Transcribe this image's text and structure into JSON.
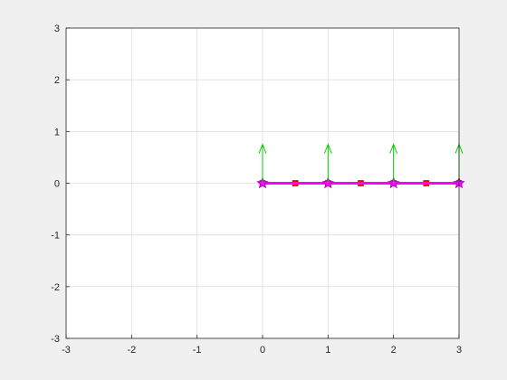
{
  "chart_data": {
    "type": "line",
    "title": "",
    "xlabel": "",
    "ylabel": "",
    "xlim": [
      -3,
      3
    ],
    "ylim": [
      -3,
      3
    ],
    "xticks": [
      "-3",
      "-2",
      "-1",
      "0",
      "1",
      "2",
      "3"
    ],
    "yticks": [
      "3",
      "2",
      "1",
      "0",
      "-1",
      "-2",
      "-3"
    ],
    "grid": true,
    "series": [
      {
        "kind": "line",
        "color": "#ff0000",
        "marker": "square",
        "x": [
          0,
          0.5,
          1,
          1.5,
          2,
          2.5,
          3
        ],
        "y": [
          0,
          0,
          0,
          0,
          0,
          0,
          0
        ]
      },
      {
        "kind": "line",
        "color": "#ff00ff",
        "marker": "star",
        "x": [
          0,
          1,
          2,
          3
        ],
        "y": [
          0,
          0,
          0,
          0
        ]
      },
      {
        "kind": "arrows",
        "color": "#00cc00",
        "x": [
          0,
          1,
          2,
          3
        ],
        "y": [
          0,
          0,
          0,
          0
        ],
        "dx": [
          0,
          0,
          0,
          0
        ],
        "dy": [
          0.75,
          0.75,
          0.75,
          0.75
        ]
      }
    ]
  }
}
